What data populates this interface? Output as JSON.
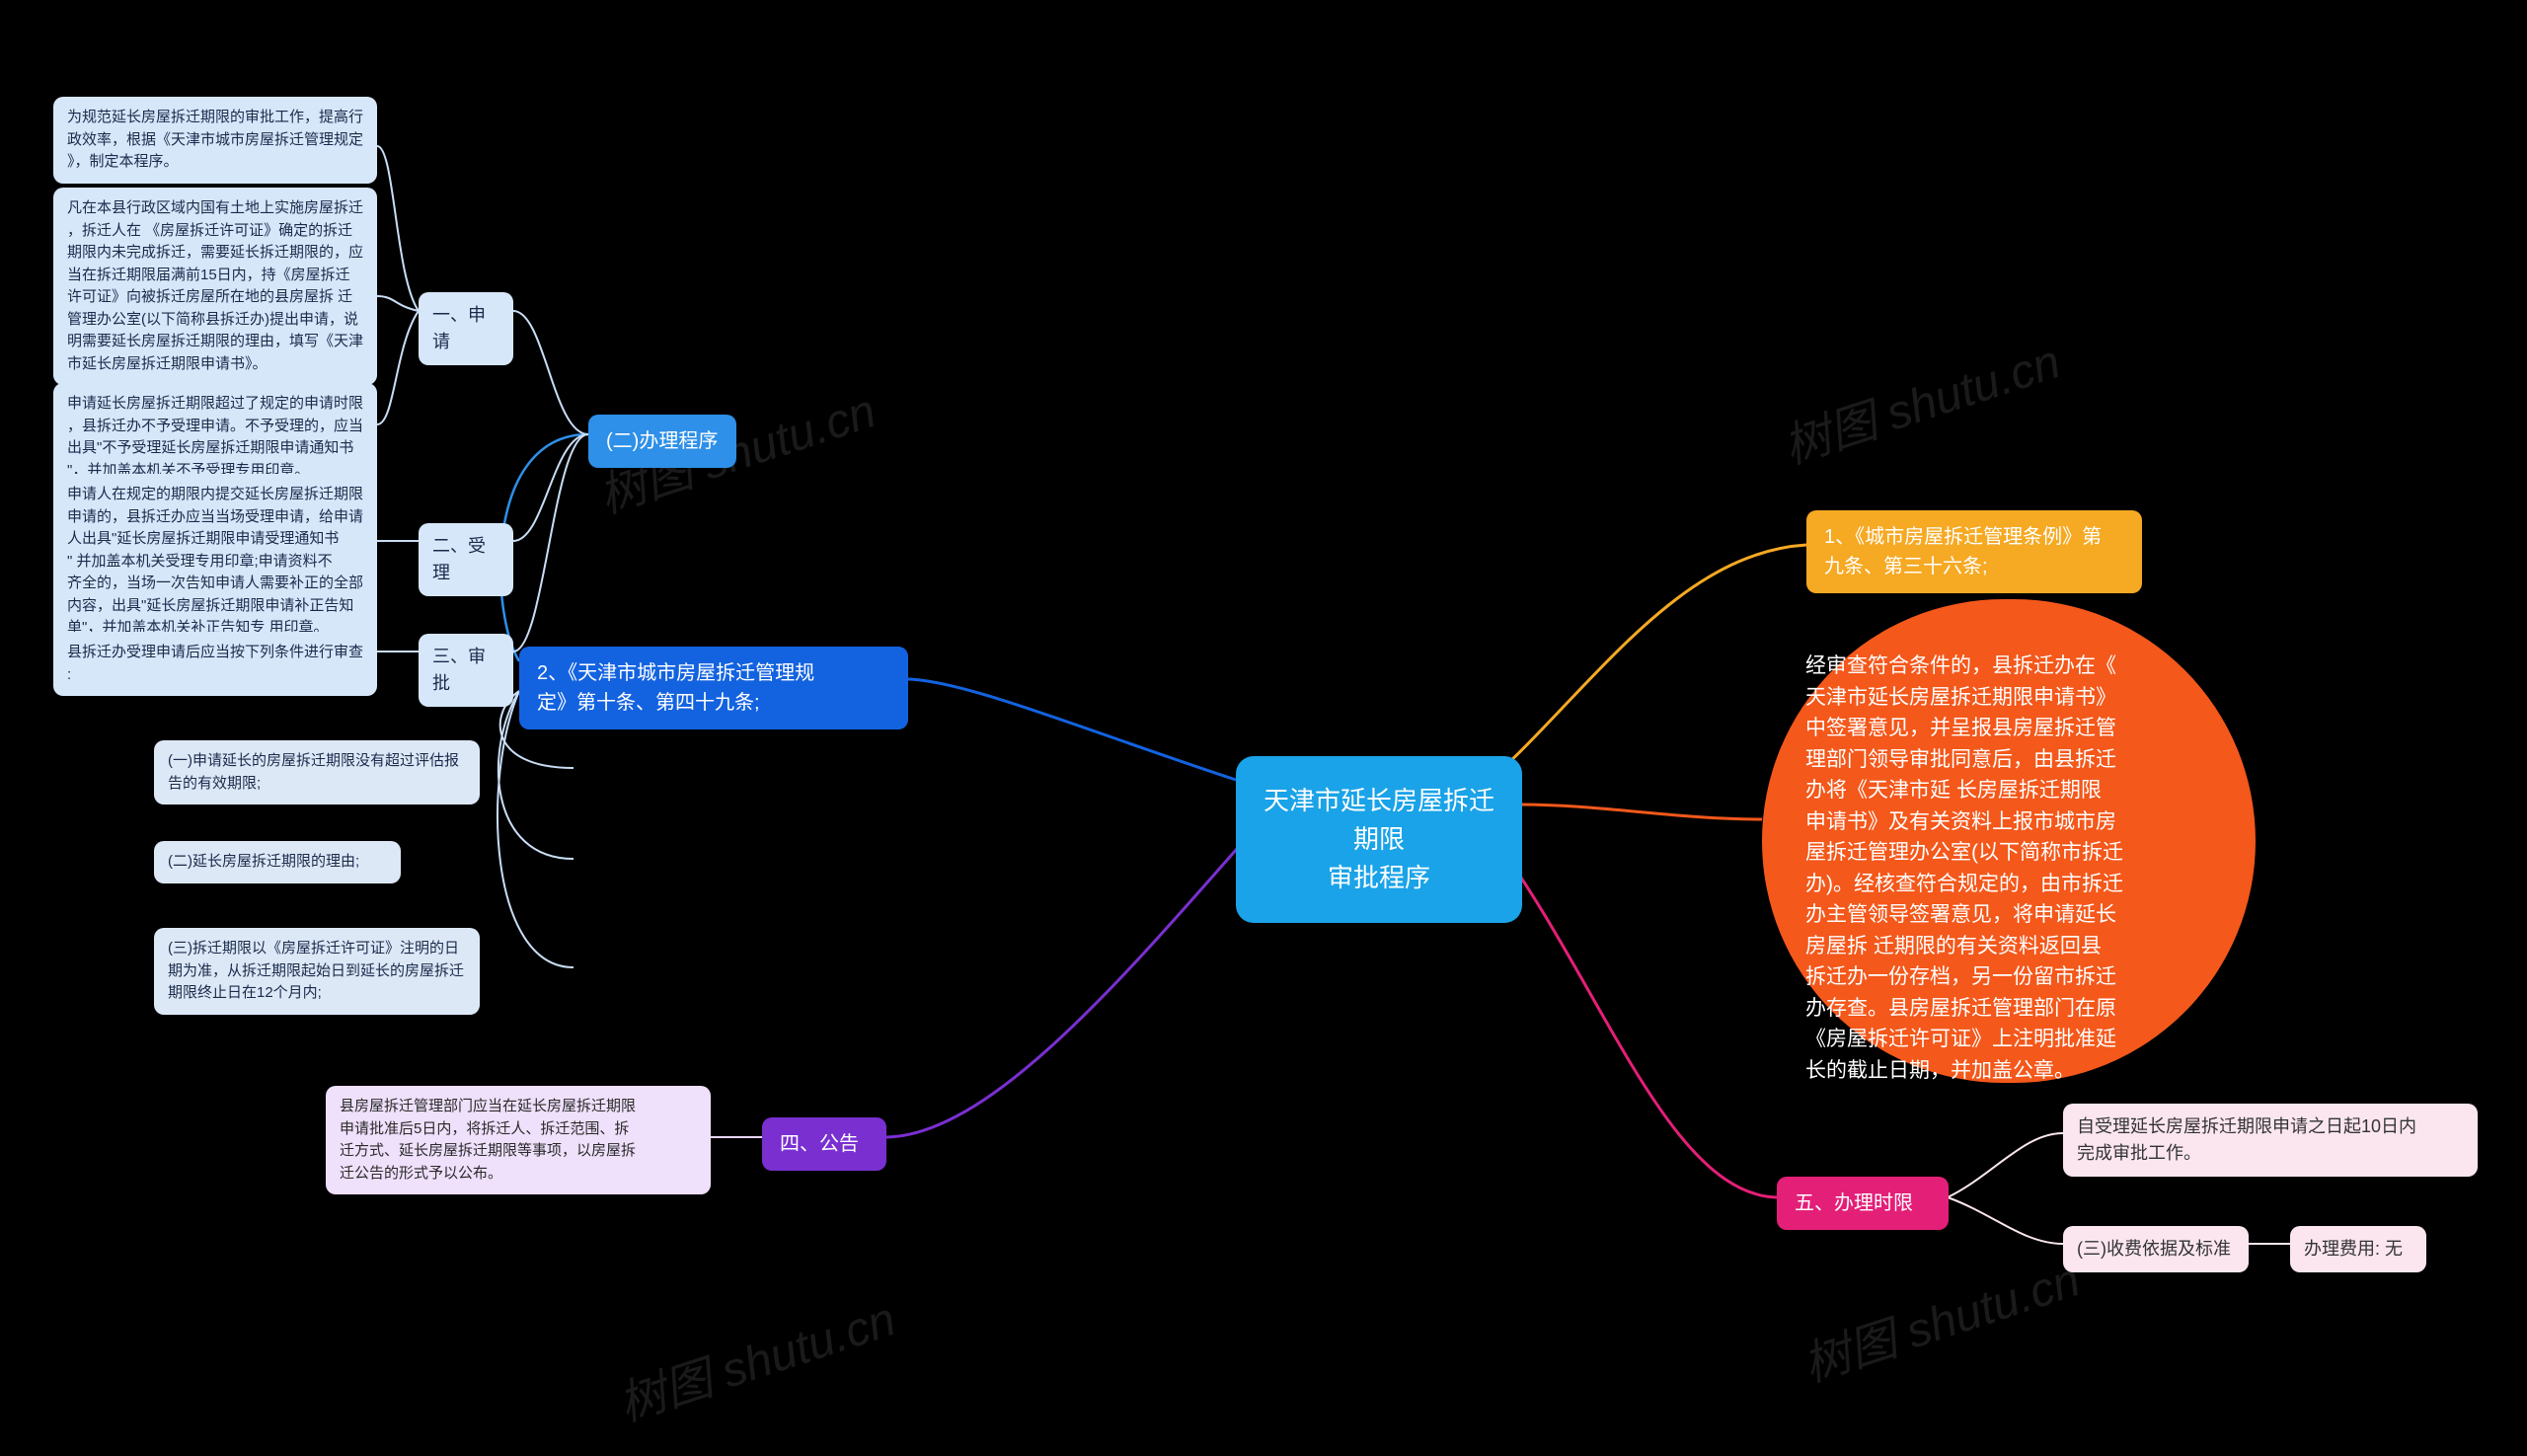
{
  "root": {
    "label": "天津市延长房屋拆迁期限\n审批程序",
    "bg": "#1aa3e8",
    "fg": "#ffffff",
    "fontsize": 26
  },
  "right": {
    "b1": {
      "label": "1、《城市房屋拆迁管理条例》第\n九条、第三十六条;",
      "bg": "#f6a923",
      "fg": "#ffffff"
    },
    "b2": {
      "label": "经审查符合条件的，县拆迁办在《\n天津市延长房屋拆迁期限申请书》\n中签署意见，并呈报县房屋拆迁管\n理部门领导审批同意后，由县拆迁\n办将《天津市延 长房屋拆迁期限\n申请书》及有关资料上报市城市房\n屋拆迁管理办公室(以下简称市拆迁\n办)。经核查符合规定的，由市拆迁\n办主管领导签署意见，将申请延长\n房屋拆 迁期限的有关资料返回县\n拆迁办一份存档，另一份留市拆迁\n办存查。县房屋拆迁管理部门在原\n《房屋拆迁许可证》上注明批准延\n长的截止日期，并加盖公章。",
      "bg": "#f4581b",
      "fg": "#ffffff"
    },
    "b3": {
      "label": "五、办理时限",
      "bg": "#e41f78",
      "fg": "#ffffff"
    },
    "b3a": {
      "label": "自受理延长房屋拆迁期限申请之日起10日内\n完成审批工作。",
      "bg": "#fbe6ef",
      "fg": "#333333"
    },
    "b3b": {
      "label": "(三)收费依据及标准",
      "bg": "#fbe6ef",
      "fg": "#333333"
    },
    "b3c": {
      "label": "办理费用: 无",
      "bg": "#fbe6ef",
      "fg": "#333333"
    }
  },
  "left": {
    "top": {
      "label": "2、《天津市城市房屋拆迁管理规\n定》第十条、第四十九条;",
      "bg": "#1363e0",
      "fg": "#ffffff"
    },
    "proc": {
      "label": "(二)办理程序",
      "bg": "#2e90e8",
      "fg": "#ffffff"
    },
    "s1": {
      "label": "一、申请",
      "bg": "#d7e7fa",
      "fg": "#1a2a4a"
    },
    "s2": {
      "label": "二、受理",
      "bg": "#d7e7fa",
      "fg": "#1a2a4a"
    },
    "s3": {
      "label": "三、审批",
      "bg": "#d7e7fa",
      "fg": "#1a2a4a"
    },
    "s1a": {
      "label": "为规范延长房屋拆迁期限的审批工作，提高行\n政效率，根据《天津市城市房屋拆迁管理规定\n》，制定本程序。",
      "bg": "#d7e7fa",
      "fg": "#1a2a4a"
    },
    "s1b": {
      "label": "凡在本县行政区域内国有土地上实施房屋拆迁\n，拆迁人在 《房屋拆迁许可证》确定的拆迁\n期限内未完成拆迁，需要延长拆迁期限的，应\n当在拆迁期限届满前15日内，持《房屋拆迁\n许可证》向被拆迁房屋所在地的县房屋拆 迁\n管理办公室(以下简称县拆迁办)提出申请，说\n明需要延长房屋拆迁期限的理由，填写《天津\n市延长房屋拆迁期限申请书》。",
      "bg": "#d7e7fa",
      "fg": "#1a2a4a"
    },
    "s1c": {
      "label": "申请延长房屋拆迁期限超过了规定的申请时限\n，县拆迁办不予受理申请。不予受理的，应当\n出具\"不予受理延长房屋拆迁期限申请通知书\n\"，并加盖本机关不予受理专用印章。",
      "bg": "#d7e7fa",
      "fg": "#1a2a4a"
    },
    "s2a": {
      "label": "申请人在规定的期限内提交延长房屋拆迁期限\n申请的，县拆迁办应当当场受理申请，给申请\n人出具\"延长房屋拆迁期限申请受理通知书\n\"  并加盖本机关受理专用印章;申请资料不\n齐全的，当场一次告知申请人需要补正的全部\n内容，出具\"延长房屋拆迁期限申请补正告知\n单\"，并加盖本机关补正告知专 用印章。",
      "bg": "#d7e7fa",
      "fg": "#1a2a4a"
    },
    "s3a": {
      "label": "县拆迁办受理申请后应当按下列条件进行审查\n:",
      "bg": "#d7e7fa",
      "fg": "#1a2a4a"
    },
    "c1": {
      "label": "(一)申请延长的房屋拆迁期限没有超过评估报\n告的有效期限;",
      "bg": "#dde8f7",
      "fg": "#1a2a4a"
    },
    "c2": {
      "label": "(二)延长房屋拆迁期限的理由;",
      "bg": "#dde8f7",
      "fg": "#1a2a4a"
    },
    "c3": {
      "label": "(三)拆迁期限以《房屋拆迁许可证》注明的日\n期为准，从拆迁期限起始日到延长的房屋拆迁\n期限终止日在12个月内;",
      "bg": "#dde8f7",
      "fg": "#1a2a4a"
    },
    "notice": {
      "label": "四、公告",
      "bg": "#7a2fd1",
      "fg": "#ffffff"
    },
    "noticeDetail": {
      "label": "县房屋拆迁管理部门应当在延长房屋拆迁期限\n申请批准后5日内，将拆迁人、拆迁范围、拆\n迁方式、延长房屋拆迁期限等事项，以房屋拆\n迁公告的形式予以公布。",
      "bg": "#efe0fb",
      "fg": "#2a2a2a"
    }
  },
  "edge_colors": {
    "yellow": "#f6a923",
    "orange": "#f4581b",
    "pink": "#e41f78",
    "blue": "#1363e0",
    "lightblue": "#2e90e8",
    "pale": "#c9ddf5",
    "purple": "#7a2fd1",
    "palepurple": "#e8d7fa",
    "palepink": "#fbe6ef"
  },
  "watermark_text": "树图 shutu.cn"
}
